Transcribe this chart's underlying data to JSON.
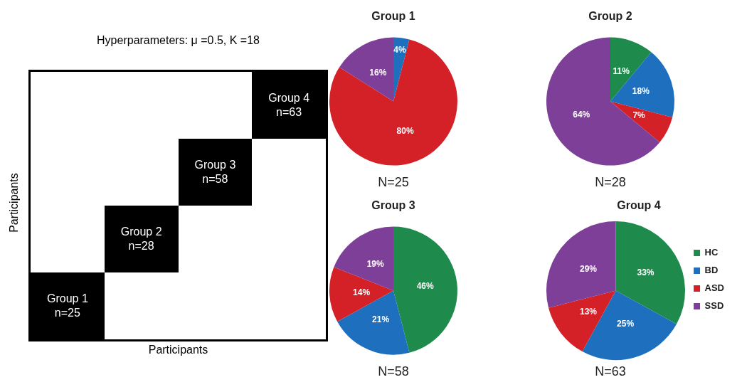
{
  "chart_data": [
    {
      "type": "other",
      "title": "Hyperparameters: μ =0.5, K =18",
      "xlabel": "Participants",
      "ylabel": "Participants",
      "annotations": [
        "Group 1\nn=25",
        "Group 2\nn=28",
        "Group 3\nn=58",
        "Group 4\nn=63"
      ]
    },
    {
      "type": "pie",
      "title": "Group 1",
      "categories": [
        null,
        null,
        null,
        null
      ],
      "values": [
        0,
        4,
        80,
        16
      ],
      "value_labels": [
        null,
        "4%",
        "80%",
        "16%"
      ],
      "colors": [
        "#1e8a4c",
        "#1f6fbf",
        "#d42027",
        "#7e3f98"
      ],
      "annotations": [
        "N=25"
      ]
    },
    {
      "type": "pie",
      "title": "Group 2",
      "categories": [
        null,
        null,
        null,
        null
      ],
      "values": [
        11,
        18,
        7,
        64
      ],
      "value_labels": [
        "11%",
        "18%",
        "7%",
        "64%"
      ],
      "colors": [
        "#1e8a4c",
        "#1f6fbf",
        "#d42027",
        "#7e3f98"
      ],
      "annotations": [
        "N=28"
      ]
    },
    {
      "type": "pie",
      "title": "Group 3",
      "categories": [
        null,
        null,
        null,
        null
      ],
      "values": [
        46,
        21,
        14,
        19
      ],
      "value_labels": [
        "46%",
        "21%",
        "14%",
        "19%"
      ],
      "colors": [
        "#1e8a4c",
        "#1f6fbf",
        "#d42027",
        "#7e3f98"
      ],
      "annotations": [
        "N=58"
      ]
    },
    {
      "type": "pie",
      "title": "Group 4",
      "categories": [
        "HC",
        "BD",
        "ASD",
        "SSD"
      ],
      "values": [
        33,
        25,
        13,
        29
      ],
      "value_labels": [
        "33%",
        "25%",
        "13%",
        "29%"
      ],
      "colors": [
        "#1e8a4c",
        "#1f6fbf",
        "#d42027",
        "#7e3f98"
      ],
      "annotations": [
        "N=63"
      ],
      "legend": "right"
    }
  ]
}
